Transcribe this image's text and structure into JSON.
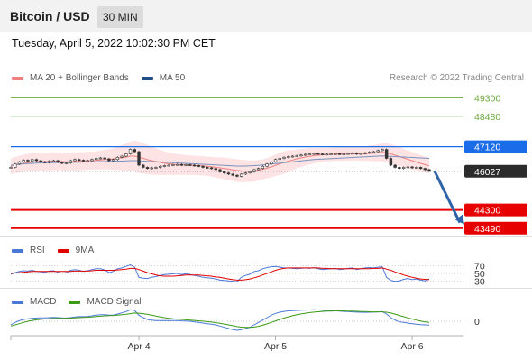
{
  "header": {
    "title": "Bitcoin / USD",
    "timeframe": "30 MIN"
  },
  "datetime": "Tuesday, April 5, 2022 10:02:30 PM CET",
  "legend_main": [
    {
      "label": "MA 20 + Bollinger Bands",
      "color": "#f08080"
    },
    {
      "label": "MA 50",
      "color": "#1f4e8c"
    }
  ],
  "credit": "Research © 2022 Trading Central",
  "legend_rsi": [
    {
      "label": "RSI",
      "color": "#4a78d6"
    },
    {
      "label": "9MA",
      "color": "#e00000"
    }
  ],
  "legend_macd": [
    {
      "label": "MACD",
      "color": "#4a78d6"
    },
    {
      "label": "MACD Signal",
      "color": "#3c9a14"
    }
  ],
  "colors": {
    "target": "#6aaa3a",
    "pivot": "#1a6ce8",
    "support": "#e60000",
    "price": "#2b2b2b",
    "arrow": "#2f64a8"
  },
  "chart_data": [
    {
      "type": "line",
      "name": "price",
      "x_tick_labels": [
        "Apr 4",
        "Apr 5",
        "Apr 6"
      ],
      "ylim": [
        43200,
        49800
      ],
      "levels": [
        {
          "label": "49300",
          "value": 49300,
          "kind": "target"
        },
        {
          "label": "48480",
          "value": 48480,
          "kind": "target"
        },
        {
          "label": "47120",
          "value": 47120,
          "kind": "pivot"
        },
        {
          "label": "46027",
          "value": 46027,
          "kind": "price"
        },
        {
          "label": "44300",
          "value": 44300,
          "kind": "support"
        },
        {
          "label": "43490",
          "value": 43490,
          "kind": "support"
        }
      ],
      "close": [
        46200,
        46350,
        46450,
        46520,
        46480,
        46550,
        46500,
        46450,
        46420,
        46480,
        46500,
        46430,
        46380,
        46400,
        46500,
        46550,
        46520,
        46480,
        46500,
        46550,
        46600,
        46620,
        46580,
        46500,
        46550,
        46650,
        46700,
        46800,
        47000,
        46900,
        46300,
        46200,
        46150,
        46180,
        46200,
        46250,
        46280,
        46300,
        46320,
        46330,
        46300,
        46320,
        46300,
        46280,
        46250,
        46200,
        46180,
        46150,
        46100,
        46000,
        45950,
        45900,
        45850,
        45800,
        45900,
        45950,
        46000,
        46100,
        46150,
        46250,
        46350,
        46450,
        46550,
        46600,
        46650,
        46680,
        46700,
        46720,
        46750,
        46780,
        46800,
        46820,
        46800,
        46780,
        46790,
        46800,
        46810,
        46790,
        46800,
        46820,
        46830,
        46800,
        46820,
        46850,
        46880,
        46900,
        46950,
        47000,
        46600,
        46300,
        46200,
        46150,
        46200,
        46220,
        46180,
        46200,
        46150,
        46100,
        46027
      ],
      "ma20": [
        46250,
        46300,
        46340,
        46380,
        46410,
        46430,
        46450,
        46460,
        46460,
        46460,
        46470,
        46470,
        46460,
        46450,
        46450,
        46460,
        46470,
        46480,
        46490,
        46500,
        46510,
        46530,
        46550,
        46560,
        46570,
        46600,
        46630,
        46660,
        46700,
        46700,
        46650,
        46600,
        46550,
        46500,
        46460,
        46420,
        46390,
        46360,
        46340,
        46330,
        46320,
        46310,
        46300,
        46290,
        46280,
        46270,
        46250,
        46230,
        46200,
        46180,
        46150,
        46120,
        46090,
        46060,
        46040,
        46030,
        46030,
        46040,
        46070,
        46110,
        46160,
        46220,
        46290,
        46360,
        46420,
        46480,
        46530,
        46580,
        46620,
        46660,
        46690,
        46720,
        46740,
        46760,
        46770,
        46780,
        46790,
        46790,
        46790,
        46800,
        46800,
        46800,
        46800,
        46810,
        46820,
        46830,
        46850,
        46870,
        46850,
        46800,
        46740,
        46680,
        46620,
        46560,
        46500,
        46440,
        46380,
        46320,
        46270
      ],
      "bb_width": [
        350,
        360,
        370,
        380,
        390,
        400,
        400,
        400,
        400,
        400,
        400,
        400,
        400,
        400,
        400,
        400,
        400,
        400,
        400,
        400,
        400,
        420,
        440,
        460,
        480,
        520,
        560,
        600,
        650,
        700,
        700,
        680,
        650,
        620,
        590,
        560,
        530,
        500,
        480,
        460,
        450,
        440,
        430,
        430,
        430,
        430,
        430,
        440,
        450,
        470,
        480,
        490,
        500,
        500,
        500,
        490,
        480,
        470,
        460,
        450,
        450,
        460,
        480,
        500,
        500,
        480,
        450,
        420,
        400,
        380,
        360,
        340,
        320,
        300,
        300,
        300,
        300,
        300,
        300,
        300,
        300,
        300,
        310,
        320,
        340,
        360,
        380,
        400,
        420,
        430,
        430,
        420,
        410,
        400,
        390,
        380,
        370,
        360,
        350
      ],
      "ma50": [
        46300,
        46320,
        46340,
        46360,
        46370,
        46380,
        46390,
        46400,
        46400,
        46410,
        46410,
        46420,
        46420,
        46420,
        46420,
        46430,
        46430,
        46440,
        46440,
        46450,
        46450,
        46460,
        46460,
        46470,
        46470,
        46480,
        46480,
        46490,
        46500,
        46500,
        46490,
        46480,
        46470,
        46460,
        46450,
        46440,
        46430,
        46420,
        46410,
        46400,
        46390,
        46380,
        46370,
        46360,
        46350,
        46340,
        46330,
        46320,
        46310,
        46300,
        46290,
        46280,
        46270,
        46260,
        46260,
        46260,
        46270,
        46280,
        46290,
        46310,
        46330,
        46350,
        46370,
        46390,
        46410,
        46430,
        46450,
        46470,
        46490,
        46510,
        46530,
        46550,
        46560,
        46570,
        46580,
        46590,
        46600,
        46610,
        46620,
        46630,
        46640,
        46650,
        46660,
        46670,
        46680,
        46690,
        46700,
        46710,
        46700,
        46690,
        46680,
        46670,
        46660,
        46650,
        46640,
        46630,
        46620,
        46610,
        46600
      ]
    },
    {
      "type": "line",
      "name": "rsi",
      "y_tick_labels": [
        "70",
        "50",
        "30"
      ],
      "ylim": [
        20,
        80
      ],
      "rsi": [
        48,
        52,
        55,
        57,
        56,
        58,
        55,
        54,
        53,
        56,
        57,
        53,
        51,
        52,
        58,
        60,
        58,
        55,
        57,
        60,
        62,
        62,
        59,
        52,
        55,
        62,
        64,
        68,
        72,
        66,
        40,
        38,
        37,
        40,
        42,
        45,
        47,
        48,
        49,
        50,
        47,
        49,
        47,
        45,
        43,
        40,
        39,
        38,
        36,
        33,
        32,
        31,
        30,
        29,
        40,
        45,
        48,
        55,
        57,
        62,
        65,
        67,
        68,
        66,
        64,
        64,
        63,
        62,
        63,
        64,
        63,
        65,
        62,
        60,
        61,
        62,
        63,
        60,
        61,
        63,
        64,
        60,
        62,
        64,
        65,
        64,
        66,
        67,
        40,
        32,
        30,
        31,
        35,
        37,
        34,
        36,
        33,
        31,
        36
      ],
      "ma9": [
        50,
        51,
        52,
        53,
        54,
        55,
        55,
        55,
        55,
        55,
        55,
        55,
        55,
        55,
        55,
        56,
        56,
        56,
        56,
        57,
        58,
        58,
        58,
        58,
        58,
        59,
        60,
        61,
        63,
        63,
        60,
        56,
        52,
        49,
        46,
        44,
        43,
        43,
        43,
        44,
        45,
        46,
        46,
        46,
        46,
        45,
        44,
        43,
        41,
        40,
        38,
        36,
        34,
        33,
        33,
        34,
        36,
        39,
        42,
        46,
        50,
        54,
        58,
        61,
        63,
        64,
        64,
        64,
        64,
        64,
        64,
        64,
        64,
        63,
        63,
        62,
        62,
        62,
        62,
        62,
        62,
        62,
        62,
        62,
        62,
        63,
        63,
        64,
        61,
        58,
        54,
        50,
        46,
        43,
        40,
        38,
        36,
        35,
        34
      ]
    },
    {
      "type": "line",
      "name": "macd",
      "y_tick_labels": [
        "0"
      ],
      "ylim": [
        -1.2,
        1.2
      ],
      "macd": [
        -0.3,
        -0.1,
        0.05,
        0.15,
        0.2,
        0.25,
        0.27,
        0.28,
        0.28,
        0.3,
        0.32,
        0.3,
        0.28,
        0.27,
        0.3,
        0.35,
        0.38,
        0.38,
        0.4,
        0.45,
        0.5,
        0.55,
        0.55,
        0.5,
        0.5,
        0.6,
        0.7,
        0.8,
        0.95,
        0.9,
        0.5,
        0.3,
        0.15,
        0.1,
        0.05,
        0.05,
        0.05,
        0.05,
        0.05,
        0.05,
        0.03,
        0.02,
        0.0,
        -0.05,
        -0.1,
        -0.15,
        -0.2,
        -0.25,
        -0.3,
        -0.4,
        -0.5,
        -0.6,
        -0.7,
        -0.75,
        -0.7,
        -0.6,
        -0.5,
        -0.3,
        -0.1,
        0.1,
        0.3,
        0.5,
        0.65,
        0.75,
        0.82,
        0.86,
        0.88,
        0.9,
        0.92,
        0.93,
        0.94,
        0.95,
        0.94,
        0.92,
        0.9,
        0.88,
        0.86,
        0.84,
        0.82,
        0.8,
        0.78,
        0.76,
        0.75,
        0.74,
        0.75,
        0.76,
        0.78,
        0.8,
        0.6,
        0.3,
        0.1,
        -0.05,
        -0.1,
        -0.15,
        -0.2,
        -0.25,
        -0.28,
        -0.3,
        -0.32
      ],
      "signal": [
        -0.4,
        -0.3,
        -0.2,
        -0.1,
        0.0,
        0.07,
        0.12,
        0.16,
        0.19,
        0.21,
        0.23,
        0.24,
        0.25,
        0.25,
        0.26,
        0.28,
        0.3,
        0.32,
        0.34,
        0.36,
        0.39,
        0.42,
        0.45,
        0.47,
        0.48,
        0.5,
        0.54,
        0.58,
        0.63,
        0.68,
        0.67,
        0.63,
        0.57,
        0.5,
        0.43,
        0.36,
        0.3,
        0.25,
        0.21,
        0.18,
        0.15,
        0.12,
        0.1,
        0.07,
        0.04,
        0.01,
        -0.03,
        -0.07,
        -0.12,
        -0.17,
        -0.23,
        -0.3,
        -0.37,
        -0.44,
        -0.49,
        -0.51,
        -0.51,
        -0.48,
        -0.42,
        -0.33,
        -0.22,
        -0.1,
        0.03,
        0.15,
        0.27,
        0.37,
        0.46,
        0.54,
        0.61,
        0.67,
        0.72,
        0.76,
        0.79,
        0.82,
        0.84,
        0.85,
        0.86,
        0.86,
        0.86,
        0.85,
        0.84,
        0.83,
        0.81,
        0.8,
        0.79,
        0.78,
        0.78,
        0.78,
        0.75,
        0.68,
        0.59,
        0.48,
        0.38,
        0.28,
        0.19,
        0.1,
        0.02,
        -0.05,
        -0.1
      ]
    }
  ]
}
